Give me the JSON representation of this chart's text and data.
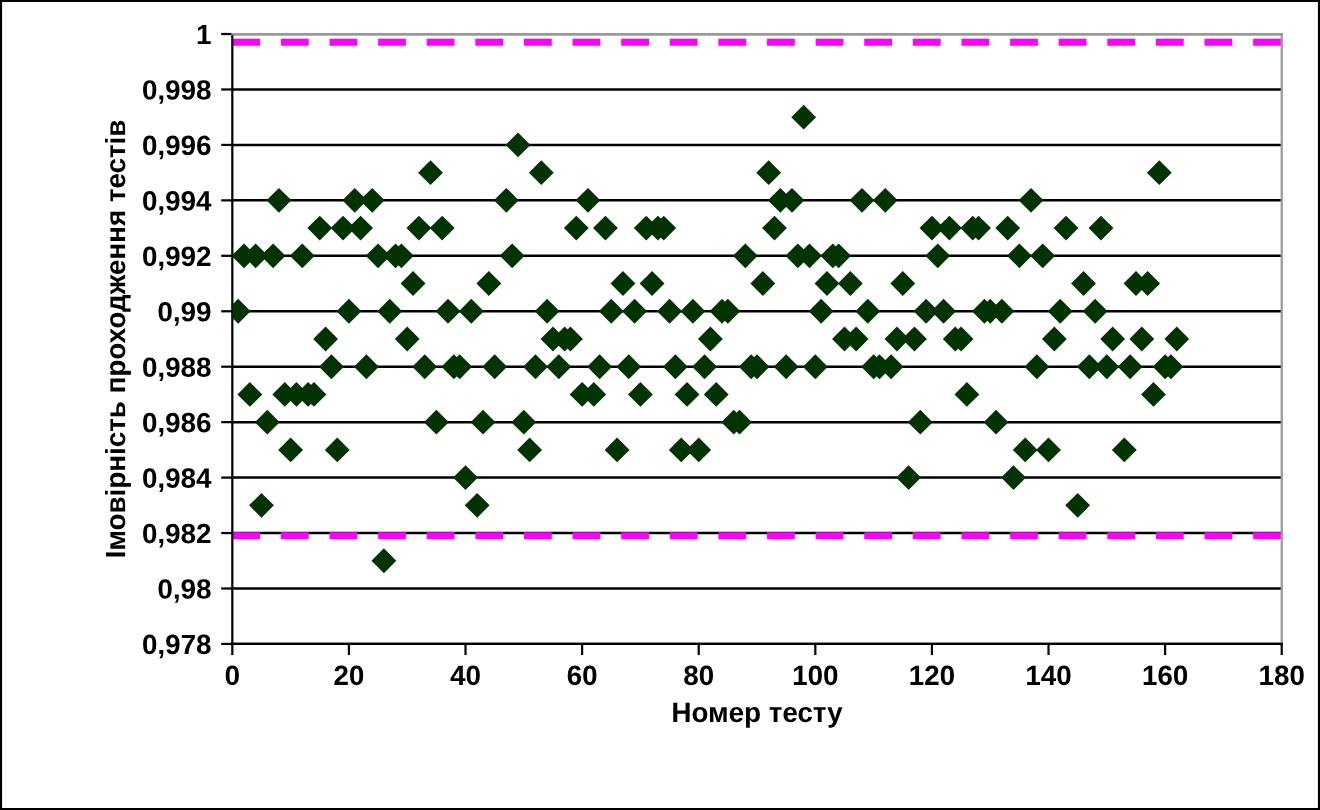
{
  "chart_data": {
    "type": "scatter",
    "xlabel": "Номер тесту",
    "ylabel": "Імовірність проходження тестів",
    "xlim": [
      0,
      180
    ],
    "xticks": [
      0,
      20,
      40,
      60,
      80,
      100,
      120,
      140,
      160,
      180
    ],
    "ylim": [
      0.978,
      1
    ],
    "yticks": [
      {
        "value": 0.978,
        "label": "0,978"
      },
      {
        "value": 0.98,
        "label": "0,98"
      },
      {
        "value": 0.982,
        "label": "0,982"
      },
      {
        "value": 0.984,
        "label": "0,984"
      },
      {
        "value": 0.986,
        "label": "0,986"
      },
      {
        "value": 0.988,
        "label": "0,988"
      },
      {
        "value": 0.99,
        "label": "0,99"
      },
      {
        "value": 0.992,
        "label": "0,992"
      },
      {
        "value": 0.994,
        "label": "0,994"
      },
      {
        "value": 0.996,
        "label": "0,996"
      },
      {
        "value": 0.998,
        "label": "0,998"
      },
      {
        "value": 1,
        "label": "1"
      }
    ],
    "grid": "y",
    "legend": false,
    "marker": "diamond",
    "ref_lines": [
      {
        "axis": "y",
        "value": 0.9997,
        "color": "#ff00ff",
        "line_style": "dashed"
      },
      {
        "axis": "y",
        "value": 0.9819,
        "color": "#ff00ff",
        "line_style": "dashed"
      }
    ],
    "series": [
      {
        "color": "#003300",
        "x": [
          1,
          2,
          3,
          4,
          5,
          6,
          7,
          8,
          9,
          10,
          11,
          12,
          13,
          14,
          15,
          16,
          17,
          18,
          19,
          20,
          21,
          22,
          23,
          24,
          25,
          26,
          27,
          28,
          29,
          30,
          31,
          32,
          33,
          34,
          35,
          36,
          37,
          38,
          39,
          40,
          41,
          42,
          43,
          44,
          45,
          47,
          48,
          49,
          50,
          51,
          52,
          53,
          54,
          55,
          56,
          57,
          58,
          59,
          60,
          61,
          62,
          63,
          64,
          65,
          66,
          67,
          68,
          69,
          70,
          71,
          72,
          73,
          74,
          75,
          76,
          77,
          78,
          79,
          80,
          81,
          82,
          83,
          84,
          85,
          86,
          87,
          88,
          89,
          90,
          91,
          92,
          93,
          94,
          95,
          96,
          97,
          98,
          99,
          100,
          101,
          102,
          103,
          104,
          105,
          106,
          107,
          108,
          109,
          110,
          111,
          112,
          113,
          114,
          115,
          116,
          117,
          118,
          119,
          120,
          121,
          122,
          123,
          124,
          125,
          126,
          127,
          128,
          129,
          130,
          131,
          132,
          133,
          134,
          135,
          136,
          137,
          138,
          139,
          140,
          141,
          142,
          143,
          145,
          146,
          147,
          148,
          149,
          150,
          151,
          153,
          154,
          155,
          156,
          157,
          158,
          159,
          160,
          161,
          162
        ],
        "values": [
          0.99,
          0.992,
          0.987,
          0.992,
          0.983,
          0.986,
          0.992,
          0.994,
          0.987,
          0.985,
          0.987,
          0.992,
          0.987,
          0.987,
          0.993,
          0.989,
          0.988,
          0.985,
          0.993,
          0.99,
          0.994,
          0.993,
          0.988,
          0.994,
          0.992,
          0.981,
          0.99,
          0.992,
          0.992,
          0.989,
          0.991,
          0.993,
          0.988,
          0.995,
          0.986,
          0.993,
          0.99,
          0.988,
          0.988,
          0.984,
          0.99,
          0.983,
          0.986,
          0.991,
          0.988,
          0.994,
          0.992,
          0.996,
          0.986,
          0.985,
          0.988,
          0.995,
          0.99,
          0.989,
          0.988,
          0.989,
          0.989,
          0.993,
          0.987,
          0.994,
          0.987,
          0.988,
          0.993,
          0.99,
          0.985,
          0.991,
          0.988,
          0.99,
          0.987,
          0.993,
          0.991,
          0.993,
          0.993,
          0.99,
          0.988,
          0.985,
          0.987,
          0.99,
          0.985,
          0.988,
          0.989,
          0.987,
          0.99,
          0.99,
          0.986,
          0.986,
          0.992,
          0.988,
          0.988,
          0.991,
          0.995,
          0.993,
          0.994,
          0.988,
          0.994,
          0.992,
          0.997,
          0.992,
          0.988,
          0.99,
          0.991,
          0.992,
          0.992,
          0.989,
          0.991,
          0.989,
          0.994,
          0.99,
          0.988,
          0.988,
          0.994,
          0.988,
          0.989,
          0.991,
          0.984,
          0.989,
          0.986,
          0.99,
          0.993,
          0.992,
          0.99,
          0.993,
          0.989,
          0.989,
          0.987,
          0.993,
          0.993,
          0.99,
          0.99,
          0.986,
          0.99,
          0.993,
          0.984,
          0.992,
          0.985,
          0.994,
          0.988,
          0.992,
          0.985,
          0.989,
          0.99,
          0.993,
          0.983,
          0.991,
          0.988,
          0.99,
          0.993,
          0.988,
          0.989,
          0.985,
          0.988,
          0.991,
          0.989,
          0.991,
          0.987,
          0.995,
          0.988,
          0.988,
          0.989
        ]
      }
    ]
  }
}
